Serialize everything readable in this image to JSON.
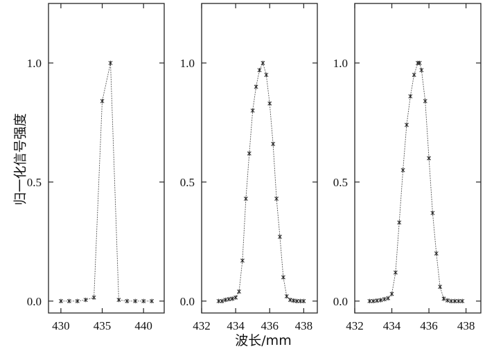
{
  "ylabel": "归一化信号强度",
  "xlabel": "波长/mm",
  "chart_data": [
    {
      "type": "line",
      "xlim": [
        428.5,
        442.5
      ],
      "ylim": [
        -0.05,
        1.25
      ],
      "xticks": [
        430,
        435,
        440
      ],
      "x_tick_labels": [
        "430",
        "435",
        "440"
      ],
      "yticks": [
        0.0,
        0.5,
        1.0
      ],
      "y_tick_labels": [
        "0.0",
        "0.5",
        "1.0"
      ],
      "series": [
        {
          "x": [
            430.0,
            431.0,
            432.0,
            433.0,
            434.0,
            435.0,
            436.0,
            437.0,
            438.0,
            439.0,
            440.0,
            441.0
          ],
          "y": [
            0.0,
            0.0,
            0.0,
            0.005,
            0.015,
            0.84,
            1.0,
            0.005,
            0.0,
            0.0,
            0.0,
            0.0
          ]
        }
      ]
    },
    {
      "type": "line",
      "xlim": [
        432.0,
        438.8
      ],
      "ylim": [
        -0.05,
        1.25
      ],
      "xticks": [
        432,
        434,
        436,
        438
      ],
      "x_tick_labels": [
        "432",
        "434",
        "436",
        "438"
      ],
      "yticks": [
        0.0,
        0.5,
        1.0
      ],
      "y_tick_labels": [
        "0.0",
        "0.5",
        "1.0"
      ],
      "series": [
        {
          "x": [
            433.0,
            433.2,
            433.4,
            433.6,
            433.8,
            434.0,
            434.2,
            434.4,
            434.6,
            434.8,
            435.0,
            435.2,
            435.4,
            435.6,
            435.8,
            436.0,
            436.2,
            436.4,
            436.6,
            436.8,
            437.0,
            437.2,
            437.4,
            437.6,
            437.8,
            438.0
          ],
          "y": [
            0.0,
            0.0,
            0.005,
            0.008,
            0.01,
            0.015,
            0.04,
            0.17,
            0.43,
            0.62,
            0.8,
            0.9,
            0.97,
            1.0,
            0.95,
            0.83,
            0.66,
            0.43,
            0.27,
            0.1,
            0.02,
            0.005,
            0.002,
            0.0,
            0.0,
            0.0
          ]
        }
      ]
    },
    {
      "type": "line",
      "xlim": [
        432.0,
        438.8
      ],
      "ylim": [
        -0.05,
        1.25
      ],
      "xticks": [
        432,
        434,
        436,
        438
      ],
      "x_tick_labels": [
        "432",
        "434",
        "436",
        "438"
      ],
      "yticks": [
        0.0,
        0.5,
        1.0
      ],
      "y_tick_labels": [
        "0.0",
        "0.5",
        "1.0"
      ],
      "series": [
        {
          "x": [
            432.8,
            433.0,
            433.2,
            433.4,
            433.6,
            433.8,
            434.0,
            434.2,
            434.4,
            434.6,
            434.8,
            435.0,
            435.2,
            435.4,
            435.5,
            435.6,
            435.8,
            436.0,
            436.2,
            436.4,
            436.6,
            436.8,
            437.0,
            437.2,
            437.4,
            437.6,
            437.8
          ],
          "y": [
            0.0,
            0.0,
            0.002,
            0.004,
            0.008,
            0.012,
            0.03,
            0.12,
            0.33,
            0.55,
            0.74,
            0.86,
            0.95,
            1.0,
            1.0,
            0.97,
            0.84,
            0.6,
            0.37,
            0.2,
            0.06,
            0.01,
            0.003,
            0.0,
            0.0,
            0.0,
            0.0
          ]
        }
      ]
    }
  ]
}
